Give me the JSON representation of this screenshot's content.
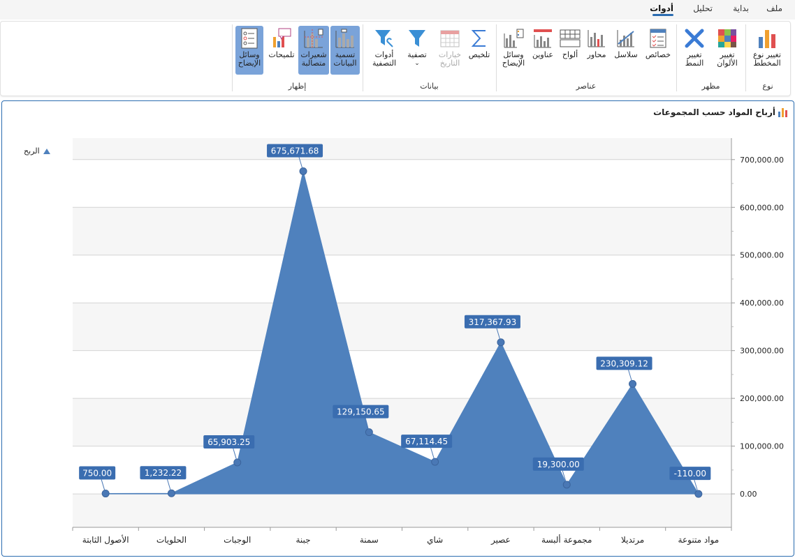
{
  "menu": {
    "tabs": [
      {
        "label": "ملف",
        "right": 18
      },
      {
        "label": "بداية",
        "right": 66
      },
      {
        "label": "تحليل",
        "right": 118
      },
      {
        "label": "أدوات",
        "right": 174
      }
    ],
    "active_tab": "أدوات"
  },
  "ribbon": {
    "groups": [
      {
        "name": "نوع"
      },
      {
        "name": "مظهر"
      },
      {
        "name": "عناصر"
      },
      {
        "name": "بيانات"
      },
      {
        "name": "إظهار"
      }
    ],
    "buttons": {
      "change_chart_type": "تغيير نوع\nالمخطط",
      "change_colors": "تغيير\nالألوان",
      "change_style": "تغيير\nالنمط",
      "properties": "خصائص",
      "series": "سلاسل",
      "axes": "محاور",
      "panes": "ألواح",
      "titles": "عناوين",
      "legends": "وسائل\nالإيضاح",
      "summary": "تلخيص",
      "date_options": "خيارات\nالتاريخ",
      "filter": "تصفية",
      "filter_tools": "أدوات\nالتصفية",
      "data_labels": "تسمية\nالبيانات",
      "crosshair": "شعيرات\nمتصالبة",
      "tooltips": "تلميحات",
      "show_legends": "وسائل\nالإيضاح"
    }
  },
  "legend": {
    "series_name": "الربح",
    "color": "#4f81bd"
  },
  "chart_data": {
    "type": "area",
    "title": "أرباح المواد حسب المجموعات",
    "categories": [
      "مواد متنوعة",
      "مرتديلا",
      "مجموعة ألبسة",
      "عصير",
      "شاي",
      "سمنة",
      "جبنة",
      "الوجبات",
      "الحلويات",
      "الأصول الثابتة"
    ],
    "series": [
      {
        "name": "الربح",
        "values": [
          -110.0,
          230309.12,
          19300.0,
          317367.93,
          67114.45,
          129150.65,
          675671.68,
          65903.25,
          1232.22,
          750.0
        ],
        "color": "#4f81bd"
      }
    ],
    "data_labels": [
      "-110.00",
      "230,309.12",
      "19,300.00",
      "317,367.93",
      "67,114.45",
      "129,150.65",
      "675,671.68",
      "65,903.25",
      "1,232.22",
      "750.00"
    ],
    "y_ticks": [
      0,
      100000,
      200000,
      300000,
      400000,
      500000,
      600000,
      700000
    ],
    "y_tick_labels": [
      "0.00",
      "100,000.00",
      "200,000.00",
      "300,000.00",
      "400,000.00",
      "500,000.00",
      "600,000.00",
      "700,000.00"
    ],
    "ylim": [
      -70000,
      745000
    ],
    "yaxis_position": "right",
    "grid": true,
    "legend_position": "top-left"
  }
}
